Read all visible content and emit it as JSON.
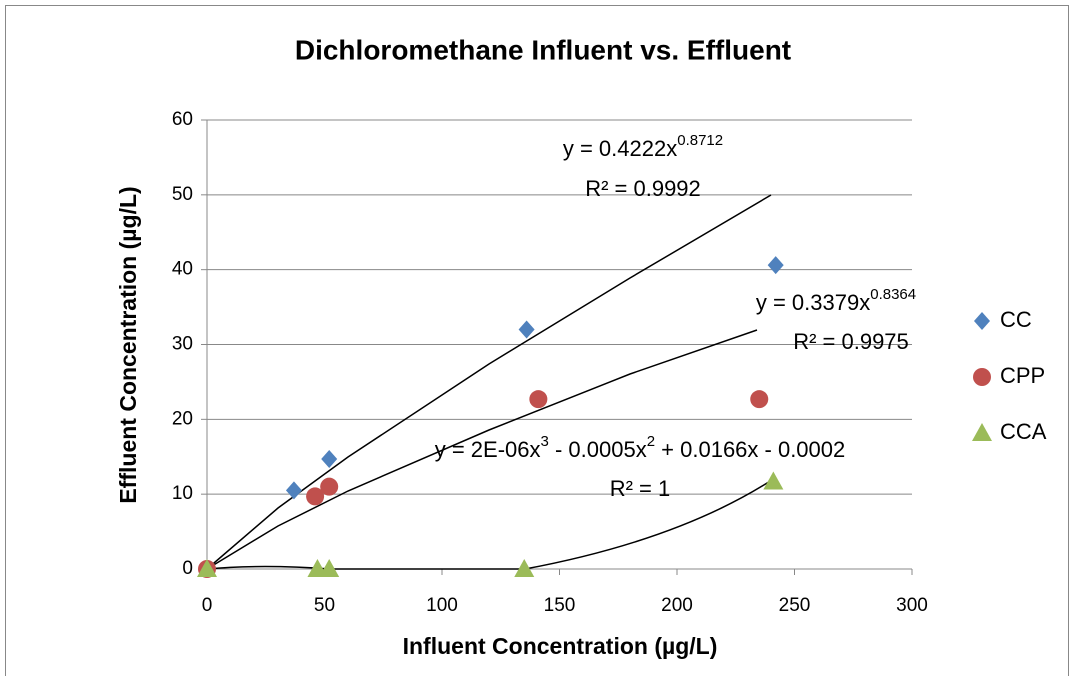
{
  "chart_data": {
    "type": "scatter",
    "title": "Dichloromethane Influent vs. Effluent",
    "xlabel": "Influent Concentration (µg/L)",
    "ylabel": "Effluent Concentration (µg/L)",
    "xlim": [
      0,
      300
    ],
    "xticks": [
      0,
      50,
      100,
      150,
      200,
      250,
      300
    ],
    "ylim": [
      0,
      60
    ],
    "yticks": [
      0,
      10,
      20,
      30,
      40,
      50,
      60
    ],
    "grid": true,
    "legend": "right",
    "series": [
      {
        "name": "CC",
        "color": "#4f81bd",
        "marker": "diamond",
        "x": [
          0,
          37,
          52,
          136,
          242
        ],
        "values": [
          0,
          10.5,
          14.7,
          32,
          40.6
        ]
      },
      {
        "name": "CPP",
        "color": "#c0504d",
        "marker": "circle",
        "x": [
          0,
          46,
          52,
          141,
          235
        ],
        "values": [
          0,
          9.7,
          11,
          22.7,
          22.7
        ]
      },
      {
        "name": "CCA",
        "color": "#9bbb59",
        "marker": "triangle",
        "x": [
          0,
          47,
          52,
          135,
          241
        ],
        "values": [
          0,
          0,
          0,
          0,
          11.7
        ]
      }
    ],
    "annotations": [
      {
        "equation": [
          "y = 0.4222x",
          "0.8712"
        ],
        "r2": "R² = 0.9992"
      },
      {
        "equation": [
          "y = 0.3379x",
          "0.8364"
        ],
        "r2": "R² = 0.9975"
      },
      {
        "equation": [
          "y = 2E-06x",
          "3",
          " - 0.0005x",
          "2",
          " + 0.0166x - 0.0002"
        ],
        "r2": "R² = 1"
      }
    ]
  }
}
